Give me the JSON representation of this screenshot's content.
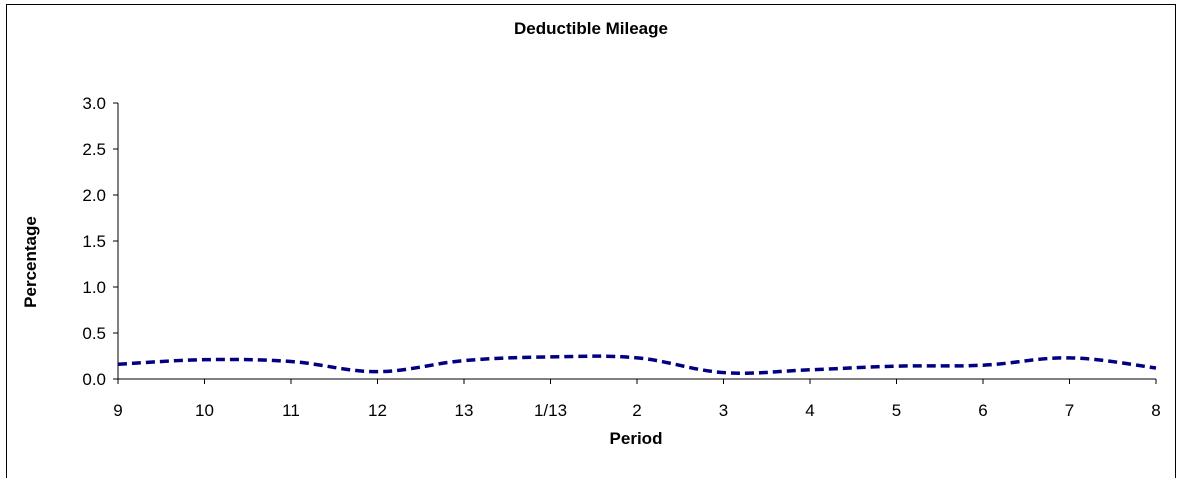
{
  "chart_data": {
    "type": "line",
    "title": "Deductible Mileage",
    "xlabel": "Period",
    "ylabel": "Percentage",
    "categories": [
      "9",
      "10",
      "11",
      "12",
      "13",
      "1/13",
      "2",
      "3",
      "4",
      "5",
      "6",
      "7",
      "8"
    ],
    "series": [
      {
        "values": [
          0.16,
          0.21,
          0.19,
          0.08,
          0.2,
          0.24,
          0.23,
          0.07,
          0.1,
          0.14,
          0.15,
          0.23,
          0.12
        ]
      }
    ],
    "ylim": [
      0,
      3.0
    ],
    "yticks": [
      "0.0",
      "0.5",
      "1.0",
      "1.5",
      "2.0",
      "2.5",
      "3.0"
    ],
    "ytick_values": [
      0,
      0.5,
      1.0,
      1.5,
      2.0,
      2.5,
      3.0
    ],
    "grid": false,
    "legend": "none",
    "line_color": "#000080",
    "line_style": "dashed"
  }
}
